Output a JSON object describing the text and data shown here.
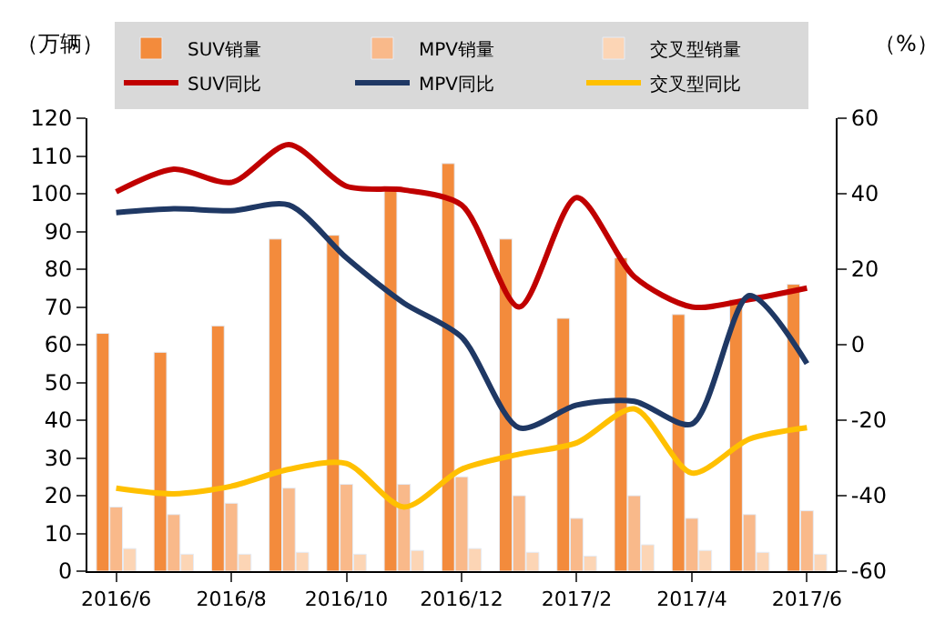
{
  "chart_data": {
    "type": "bar",
    "ylabel": "（万辆）",
    "y2label": "（%）",
    "categories": [
      "2016/6",
      null,
      "2016/8",
      null,
      "2016/10",
      null,
      "2016/12",
      null,
      "2017/2",
      null,
      "2017/4",
      null,
      "2017/6"
    ],
    "series": [
      {
        "name": "SUV销量",
        "color": "#f38b3c",
        "values": [
          63,
          58,
          65,
          88,
          89,
          101,
          108,
          88,
          67,
          83,
          68,
          72,
          76
        ]
      },
      {
        "name": "MPV销量",
        "color": "#f9b98a",
        "values": [
          17,
          15,
          18,
          22,
          23,
          23,
          25,
          20,
          14,
          20,
          14,
          15,
          16
        ]
      },
      {
        "name": "交叉型销量",
        "color": "#fcd5b5",
        "values": [
          6,
          4.5,
          4.5,
          5,
          4.5,
          5.5,
          6,
          5,
          4,
          7,
          5.5,
          5,
          4.5
        ]
      },
      {
        "name": "SUV同比",
        "type": "line",
        "axis": "y2",
        "color": "#c00000",
        "values": [
          40.5,
          46.5,
          43,
          53,
          42,
          41,
          37,
          10,
          39,
          18,
          10,
          12,
          15
        ]
      },
      {
        "name": "MPV同比",
        "type": "line",
        "axis": "y2",
        "color": "#1f3864",
        "values": [
          35,
          36,
          35.5,
          37,
          23,
          11,
          2,
          -22,
          -16,
          -15,
          -21,
          13,
          -5
        ]
      },
      {
        "name": "交叉型同比",
        "type": "line",
        "axis": "y2",
        "color": "#ffc000",
        "values": [
          -38,
          -39.5,
          -37.5,
          -33,
          -31.5,
          -43,
          -33,
          -29,
          -26,
          -17,
          -34,
          -25,
          -22
        ]
      }
    ],
    "ylim": [
      0,
      120
    ],
    "yticks": [
      0,
      10,
      20,
      30,
      40,
      50,
      60,
      70,
      80,
      90,
      100,
      110,
      120
    ],
    "y2lim": [
      -60,
      60
    ],
    "y2ticks": [
      -60,
      -40,
      -20,
      0,
      20,
      40,
      60
    ],
    "legend": "top",
    "marker": "none",
    "line_style": "solid"
  }
}
